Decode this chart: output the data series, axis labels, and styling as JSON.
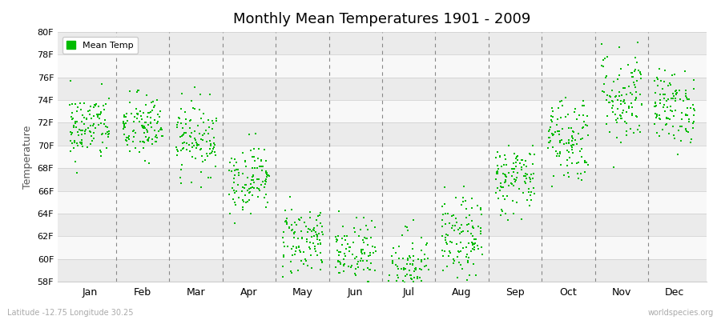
{
  "title": "Monthly Mean Temperatures 1901 - 2009",
  "ylabel": "Temperature",
  "xlabel_bottom_left": "Latitude -12.75 Longitude 30.25",
  "xlabel_bottom_right": "worldspecies.org",
  "legend_label": "Mean Temp",
  "dot_color": "#00bb00",
  "bg_color": "#ffffff",
  "plot_bg_color": "#ffffff",
  "band_color_even": "#ebebeb",
  "band_color_odd": "#f8f8f8",
  "ylim": [
    58,
    80
  ],
  "yticks": [
    58,
    60,
    62,
    64,
    66,
    68,
    70,
    72,
    74,
    76,
    78,
    80
  ],
  "ytick_labels": [
    "58F",
    "60F",
    "62F",
    "64F",
    "66F",
    "68F",
    "70F",
    "72F",
    "74F",
    "76F",
    "78F",
    "80F"
  ],
  "months": [
    "Jan",
    "Feb",
    "Mar",
    "Apr",
    "May",
    "Jun",
    "Jul",
    "Aug",
    "Sep",
    "Oct",
    "Nov",
    "Dec"
  ],
  "month_mean_temps_F": [
    71.6,
    71.6,
    70.7,
    67.1,
    61.7,
    59.9,
    59.0,
    61.7,
    67.1,
    70.7,
    74.3,
    73.4
  ],
  "month_std_F": [
    1.5,
    1.5,
    1.6,
    1.5,
    1.6,
    1.8,
    1.8,
    1.8,
    1.6,
    2.0,
    2.2,
    1.6
  ],
  "n_years": 109,
  "seed": 42
}
